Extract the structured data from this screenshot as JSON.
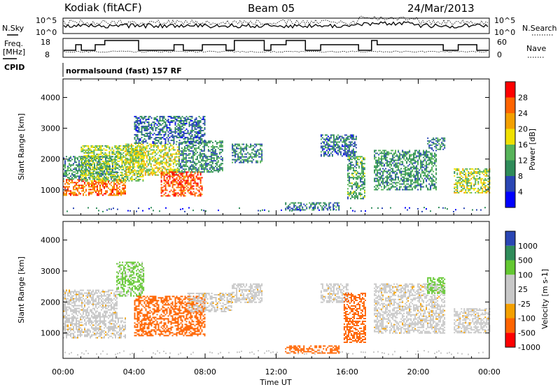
{
  "header": {
    "station": "Kodiak (fitACF)",
    "beam": "Beam 05",
    "date": "24/Mar/2013"
  },
  "top_panels": {
    "nsky_label": "N.Sky",
    "nsearch_label": "N.Search",
    "noise_ticks": [
      "10^5",
      "10^0"
    ],
    "freq_label_line1": "Freq.",
    "freq_label_line2": "[MHz]",
    "freq_ticks": [
      "18",
      "8"
    ],
    "nave_label": "Nave",
    "nave_ticks": [
      "60",
      "0"
    ],
    "cpid_label": "CPID",
    "cpid_value": "normalsound (fast) 157 RF"
  },
  "colors": {
    "power": [
      "#0000ff",
      "#2a46b4",
      "#2f8c5a",
      "#57b45a",
      "#f0e000",
      "#f4a000",
      "#ff6400",
      "#ff0000"
    ],
    "velocity": [
      "#ff0000",
      "#ff6400",
      "#f4a000",
      "#c8c8c8",
      "#c8c8c8",
      "#64c832",
      "#2f8c5a",
      "#2a46b4"
    ]
  },
  "chart_data": [
    {
      "type": "heatmap",
      "name": "power",
      "ylabel": "Slant Range [km]",
      "xlabel": "Time UT",
      "xlim": [
        0,
        24
      ],
      "ylim": [
        180,
        4600
      ],
      "x_ticks": [
        "00:00",
        "04:00",
        "08:00",
        "12:00",
        "16:00",
        "20:00",
        "00:00"
      ],
      "y_ticks": [
        "1000",
        "2000",
        "3000",
        "4000"
      ],
      "colorbar_label": "Power [dB]",
      "colorbar_range": [
        0,
        32
      ],
      "colorbar_ticks": [
        "4",
        "8",
        "12",
        "16",
        "20",
        "24",
        "28"
      ],
      "regions": [
        {
          "t": [
            0.0,
            3.5
          ],
          "r": [
            850,
            1350
          ],
          "v": 25
        },
        {
          "t": [
            0.0,
            3.0
          ],
          "r": [
            1350,
            2100
          ],
          "v": 11
        },
        {
          "t": [
            1.0,
            4.5
          ],
          "r": [
            1300,
            2450
          ],
          "v": 15
        },
        {
          "t": [
            3.5,
            6.5
          ],
          "r": [
            1500,
            2500
          ],
          "v": 17
        },
        {
          "t": [
            5.5,
            7.8
          ],
          "r": [
            800,
            1600
          ],
          "v": 27
        },
        {
          "t": [
            6.5,
            9.0
          ],
          "r": [
            1600,
            2600
          ],
          "v": 11
        },
        {
          "t": [
            4.0,
            8.0
          ],
          "r": [
            2500,
            3400
          ],
          "v": 8
        },
        {
          "t": [
            9.5,
            11.2
          ],
          "r": [
            1900,
            2500
          ],
          "v": 10
        },
        {
          "t": [
            12.5,
            15.5
          ],
          "r": [
            350,
            600
          ],
          "v": 9
        },
        {
          "t": [
            14.5,
            16.5
          ],
          "r": [
            2100,
            2800
          ],
          "v": 8
        },
        {
          "t": [
            16.0,
            17.0
          ],
          "r": [
            700,
            2100
          ],
          "v": 12
        },
        {
          "t": [
            17.5,
            21.0
          ],
          "r": [
            1000,
            2300
          ],
          "v": 11
        },
        {
          "t": [
            20.5,
            21.5
          ],
          "r": [
            2300,
            2700
          ],
          "v": 9
        },
        {
          "t": [
            22.0,
            24.0
          ],
          "r": [
            900,
            1700
          ],
          "v": 16
        }
      ]
    },
    {
      "type": "heatmap",
      "name": "velocity",
      "ylabel": "Slant Range [km]",
      "xlabel": "Time UT",
      "xlim": [
        0,
        24
      ],
      "ylim": [
        180,
        4600
      ],
      "x_ticks": [
        "00:00",
        "04:00",
        "08:00",
        "12:00",
        "16:00",
        "20:00",
        "00:00"
      ],
      "y_ticks": [
        "1000",
        "2000",
        "3000",
        "4000"
      ],
      "colorbar_label": "Velocity [m s-1]",
      "colorbar_levels": [
        -1000,
        -500,
        -100,
        -25,
        25,
        100,
        500,
        1000
      ],
      "colorbar_ticks": [
        "1000",
        "500",
        "100",
        "25",
        "-25",
        "-100",
        "-500",
        "-1000"
      ],
      "regions": [
        {
          "t": [
            0.0,
            3.5
          ],
          "r": [
            850,
            1500
          ],
          "v": 0
        },
        {
          "t": [
            0.0,
            3.0
          ],
          "r": [
            1500,
            2400
          ],
          "v": 0
        },
        {
          "t": [
            3.0,
            4.5
          ],
          "r": [
            2200,
            3300
          ],
          "v": 150
        },
        {
          "t": [
            4.0,
            8.0
          ],
          "r": [
            900,
            2200
          ],
          "v": -300
        },
        {
          "t": [
            7.0,
            9.5
          ],
          "r": [
            1700,
            2300
          ],
          "v": 0
        },
        {
          "t": [
            9.5,
            11.2
          ],
          "r": [
            2000,
            2600
          ],
          "v": 0
        },
        {
          "t": [
            12.5,
            15.5
          ],
          "r": [
            350,
            600
          ],
          "v": -200
        },
        {
          "t": [
            14.5,
            16.0
          ],
          "r": [
            2000,
            2600
          ],
          "v": 0
        },
        {
          "t": [
            15.8,
            17.0
          ],
          "r": [
            700,
            2300
          ],
          "v": -300
        },
        {
          "t": [
            17.5,
            21.5
          ],
          "r": [
            1000,
            2600
          ],
          "v": 0
        },
        {
          "t": [
            20.5,
            21.5
          ],
          "r": [
            2300,
            2800
          ],
          "v": 200
        },
        {
          "t": [
            22.0,
            24.0
          ],
          "r": [
            1000,
            1800
          ],
          "v": 0
        }
      ]
    }
  ]
}
